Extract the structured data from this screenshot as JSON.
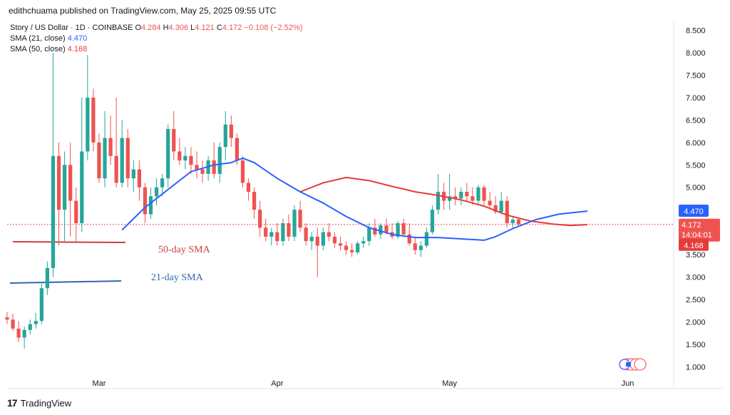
{
  "publisher_line": "edithchuama published on TradingView.com, May 25, 2025 09:55 UTC",
  "legend": {
    "symbol": "Story / US Dollar · 1D · COINBASE",
    "o_label": "O",
    "o": "4.284",
    "h_label": "H",
    "h": "4.306",
    "l_label": "L",
    "l": "4.121",
    "c_label": "C",
    "c": "4.172",
    "change": "−0.108 (−2.52%)",
    "sma21_label": "SMA (21, close)",
    "sma21_value": "4.470",
    "sma50_label": "SMA (50, close)",
    "sma50_value": "4.168"
  },
  "annotations": {
    "sma50": "50-day SMA",
    "sma21": "21-day SMA"
  },
  "price_tags": {
    "sma21": "4.470",
    "last": "4.172",
    "countdown": "14:04:01",
    "sma50": "4.168"
  },
  "footer": {
    "brand": "TradingView",
    "logo": "tv-logo-icon"
  },
  "colors": {
    "up": "#26a69a",
    "down": "#ef5350",
    "sma21": "#2962ff",
    "sma50": "#e63b3b",
    "annot21": "#3466b0",
    "annot50": "#c94040"
  },
  "chart_data": {
    "type": "candlestick",
    "ylim": [
      0.75,
      8.7
    ],
    "yticks": [
      "1.000",
      "1.500",
      "2.000",
      "2.500",
      "3.000",
      "3.500",
      "4.000",
      "4.500",
      "5.000",
      "5.500",
      "6.000",
      "6.500",
      "7.000",
      "7.500",
      "8.000",
      "8.500"
    ],
    "ytick_values": [
      1.0,
      1.5,
      2.0,
      2.5,
      3.0,
      3.5,
      4.0,
      4.5,
      5.0,
      5.5,
      6.0,
      6.5,
      7.0,
      7.5,
      8.0,
      8.5
    ],
    "xlim": [
      "2025-02-13",
      "2025-06-09"
    ],
    "xticks": [
      {
        "label": "Mar",
        "date": "2025-03-01"
      },
      {
        "label": "Apr",
        "date": "2025-04-01"
      },
      {
        "label": "May",
        "date": "2025-05-01"
      },
      {
        "label": "Jun",
        "date": "2025-06-01"
      }
    ],
    "first_date": "2025-02-13",
    "candles": [
      [
        2.1,
        2.22,
        1.95,
        2.05
      ],
      [
        2.05,
        2.18,
        1.8,
        1.85
      ],
      [
        1.85,
        2.02,
        1.55,
        1.65
      ],
      [
        1.65,
        1.9,
        1.4,
        1.82
      ],
      [
        1.82,
        2.05,
        1.72,
        1.95
      ],
      [
        1.95,
        2.2,
        1.85,
        2.02
      ],
      [
        2.02,
        2.88,
        1.95,
        2.75
      ],
      [
        2.75,
        3.35,
        2.6,
        3.2
      ],
      [
        3.2,
        8.0,
        3.0,
        5.7
      ],
      [
        5.7,
        6.0,
        3.7,
        4.5
      ],
      [
        4.5,
        5.8,
        3.8,
        5.5
      ],
      [
        5.5,
        6.0,
        3.9,
        4.7
      ],
      [
        4.7,
        5.0,
        3.8,
        4.2
      ],
      [
        4.2,
        7.0,
        4.0,
        5.8
      ],
      [
        5.8,
        7.95,
        5.6,
        7.0
      ],
      [
        7.0,
        7.2,
        5.8,
        6.0
      ],
      [
        6.0,
        6.2,
        5.1,
        5.2
      ],
      [
        5.2,
        6.7,
        5.0,
        6.1
      ],
      [
        6.1,
        6.6,
        5.5,
        5.7
      ],
      [
        5.7,
        7.0,
        5.0,
        5.1
      ],
      [
        5.1,
        6.5,
        5.0,
        6.1
      ],
      [
        6.1,
        6.3,
        5.0,
        5.2
      ],
      [
        5.2,
        5.6,
        4.9,
        5.4
      ],
      [
        5.4,
        5.6,
        4.7,
        5.0
      ],
      [
        5.0,
        5.1,
        4.2,
        4.4
      ],
      [
        4.4,
        5.0,
        4.3,
        4.8
      ],
      [
        4.8,
        5.2,
        4.6,
        5.0
      ],
      [
        5.0,
        5.3,
        4.8,
        5.2
      ],
      [
        5.2,
        6.4,
        5.0,
        6.3
      ],
      [
        6.3,
        6.7,
        5.6,
        5.8
      ],
      [
        5.8,
        6.1,
        5.5,
        5.6
      ],
      [
        5.6,
        5.9,
        5.4,
        5.7
      ],
      [
        5.7,
        5.9,
        5.3,
        5.5
      ],
      [
        5.5,
        5.8,
        5.2,
        5.4
      ],
      [
        5.4,
        5.6,
        5.1,
        5.3
      ],
      [
        5.3,
        5.7,
        5.15,
        5.6
      ],
      [
        5.6,
        6.0,
        5.2,
        5.3
      ],
      [
        5.3,
        6.0,
        5.1,
        5.9
      ],
      [
        5.9,
        6.7,
        5.6,
        6.4
      ],
      [
        6.4,
        6.6,
        5.9,
        6.1
      ],
      [
        6.1,
        6.2,
        5.5,
        5.6
      ],
      [
        5.6,
        5.7,
        5.0,
        5.1
      ],
      [
        5.1,
        5.2,
        4.7,
        4.9
      ],
      [
        4.9,
        5.0,
        4.3,
        4.5
      ],
      [
        4.5,
        4.7,
        3.9,
        4.1
      ],
      [
        4.1,
        4.3,
        3.8,
        3.9
      ],
      [
        3.9,
        4.1,
        3.7,
        4.0
      ],
      [
        4.0,
        4.2,
        3.7,
        3.8
      ],
      [
        3.8,
        4.3,
        3.7,
        4.2
      ],
      [
        4.2,
        4.4,
        3.8,
        3.9
      ],
      [
        3.9,
        4.6,
        3.8,
        4.5
      ],
      [
        4.5,
        4.7,
        4.0,
        4.1
      ],
      [
        4.1,
        4.2,
        3.7,
        3.8
      ],
      [
        3.8,
        4.0,
        3.6,
        3.9
      ],
      [
        3.9,
        4.1,
        3.0,
        3.7
      ],
      [
        3.7,
        4.1,
        3.6,
        4.0
      ],
      [
        4.0,
        4.2,
        3.8,
        3.9
      ],
      [
        3.9,
        4.0,
        3.65,
        3.75
      ],
      [
        3.75,
        3.9,
        3.6,
        3.7
      ],
      [
        3.7,
        3.8,
        3.5,
        3.6
      ],
      [
        3.6,
        3.75,
        3.45,
        3.55
      ],
      [
        3.55,
        3.8,
        3.5,
        3.75
      ],
      [
        3.75,
        3.9,
        3.65,
        3.8
      ],
      [
        3.8,
        4.2,
        3.7,
        4.1
      ],
      [
        4.1,
        4.3,
        3.9,
        3.95
      ],
      [
        3.95,
        4.2,
        3.85,
        4.15
      ],
      [
        4.15,
        4.3,
        3.95,
        4.0
      ],
      [
        4.0,
        4.2,
        3.85,
        3.9
      ],
      [
        3.9,
        4.25,
        3.85,
        4.2
      ],
      [
        4.2,
        4.3,
        3.9,
        3.95
      ],
      [
        3.95,
        4.2,
        3.7,
        3.75
      ],
      [
        3.75,
        3.9,
        3.5,
        3.6
      ],
      [
        3.6,
        3.8,
        3.45,
        3.7
      ],
      [
        3.7,
        4.1,
        3.65,
        4.0
      ],
      [
        4.0,
        4.6,
        3.95,
        4.5
      ],
      [
        4.5,
        5.3,
        4.4,
        4.9
      ],
      [
        4.9,
        5.1,
        4.5,
        4.7
      ],
      [
        4.7,
        5.3,
        4.5,
        4.8
      ],
      [
        4.8,
        5.0,
        4.6,
        4.75
      ],
      [
        4.75,
        5.0,
        4.6,
        4.9
      ],
      [
        4.9,
        5.1,
        4.7,
        4.8
      ],
      [
        4.8,
        5.0,
        4.6,
        4.7
      ],
      [
        4.7,
        5.05,
        4.6,
        5.0
      ],
      [
        5.0,
        5.05,
        4.6,
        4.7
      ],
      [
        4.7,
        4.9,
        4.5,
        4.6
      ],
      [
        4.6,
        4.8,
        4.4,
        4.45
      ],
      [
        4.45,
        4.9,
        4.4,
        4.7
      ],
      [
        4.7,
        4.8,
        4.1,
        4.2
      ],
      [
        4.2,
        4.35,
        4.1,
        4.28
      ],
      [
        4.284,
        4.306,
        4.121,
        4.172
      ]
    ],
    "sma21": {
      "name": "SMA (21, close)",
      "points": [
        [
          "2025-03-05",
          4.05
        ],
        [
          "2025-03-09",
          4.55
        ],
        [
          "2025-03-13",
          4.95
        ],
        [
          "2025-03-17",
          5.35
        ],
        [
          "2025-03-21",
          5.5
        ],
        [
          "2025-03-24",
          5.55
        ],
        [
          "2025-03-26",
          5.65
        ],
        [
          "2025-03-28",
          5.55
        ],
        [
          "2025-04-01",
          5.2
        ],
        [
          "2025-04-05",
          4.9
        ],
        [
          "2025-04-09",
          4.65
        ],
        [
          "2025-04-13",
          4.35
        ],
        [
          "2025-04-17",
          4.1
        ],
        [
          "2025-04-21",
          3.95
        ],
        [
          "2025-04-25",
          3.88
        ],
        [
          "2025-04-29",
          3.88
        ],
        [
          "2025-05-03",
          3.85
        ],
        [
          "2025-05-07",
          3.82
        ],
        [
          "2025-05-09",
          3.9
        ],
        [
          "2025-05-12",
          4.08
        ],
        [
          "2025-05-16",
          4.28
        ],
        [
          "2025-05-20",
          4.4
        ],
        [
          "2025-05-25",
          4.47
        ]
      ]
    },
    "sma50": {
      "name": "SMA (50, close)",
      "points": [
        [
          "2025-04-05",
          4.9
        ],
        [
          "2025-04-09",
          5.1
        ],
        [
          "2025-04-13",
          5.22
        ],
        [
          "2025-04-17",
          5.15
        ],
        [
          "2025-04-21",
          5.02
        ],
        [
          "2025-04-25",
          4.9
        ],
        [
          "2025-04-29",
          4.82
        ],
        [
          "2025-05-03",
          4.72
        ],
        [
          "2025-05-07",
          4.58
        ],
        [
          "2025-05-11",
          4.38
        ],
        [
          "2025-05-15",
          4.25
        ],
        [
          "2025-05-19",
          4.18
        ],
        [
          "2025-05-22",
          4.15
        ],
        [
          "2025-05-25",
          4.168
        ]
      ]
    }
  }
}
